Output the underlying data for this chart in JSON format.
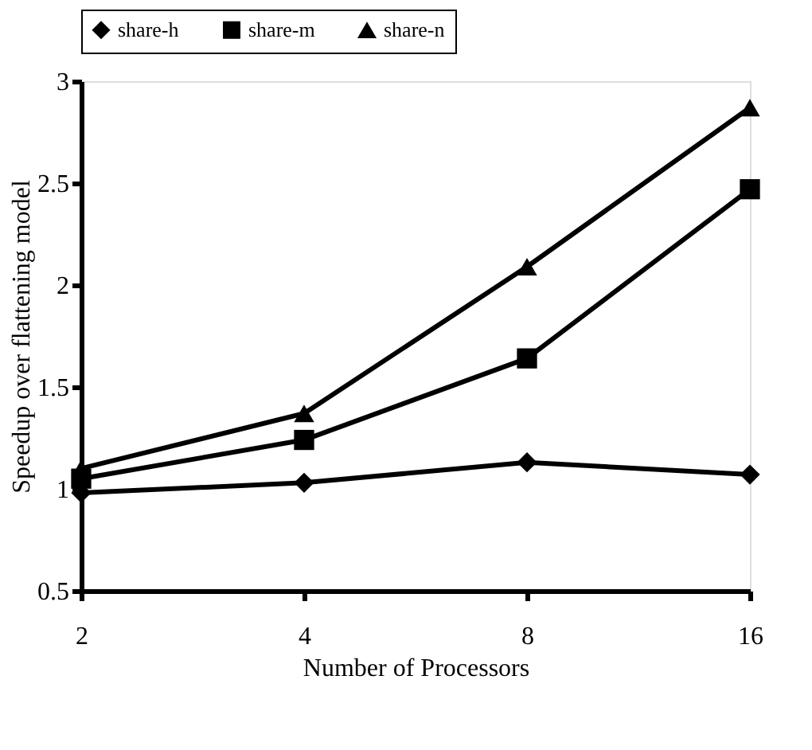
{
  "chart_data": {
    "type": "line",
    "xlabel": "Number of Processors",
    "ylabel": "Speedup over flattening model",
    "categories": [
      "2",
      "4",
      "8",
      "16"
    ],
    "series": [
      {
        "name": "share-h",
        "color": "#000000",
        "marker": "diamond",
        "values": [
          0.98,
          1.03,
          1.13,
          1.07
        ]
      },
      {
        "name": "share-m",
        "color": "#000000",
        "marker": "square",
        "values": [
          1.05,
          1.24,
          1.64,
          2.47
        ]
      },
      {
        "name": "share-n",
        "color": "#000000",
        "marker": "triangle",
        "values": [
          1.1,
          1.37,
          2.09,
          2.87
        ]
      }
    ],
    "ylim": [
      0.5,
      3
    ],
    "yticks": [
      0.5,
      1,
      1.5,
      2,
      2.5,
      3
    ],
    "grid": false,
    "legend": "top",
    "line_style": "solid"
  }
}
